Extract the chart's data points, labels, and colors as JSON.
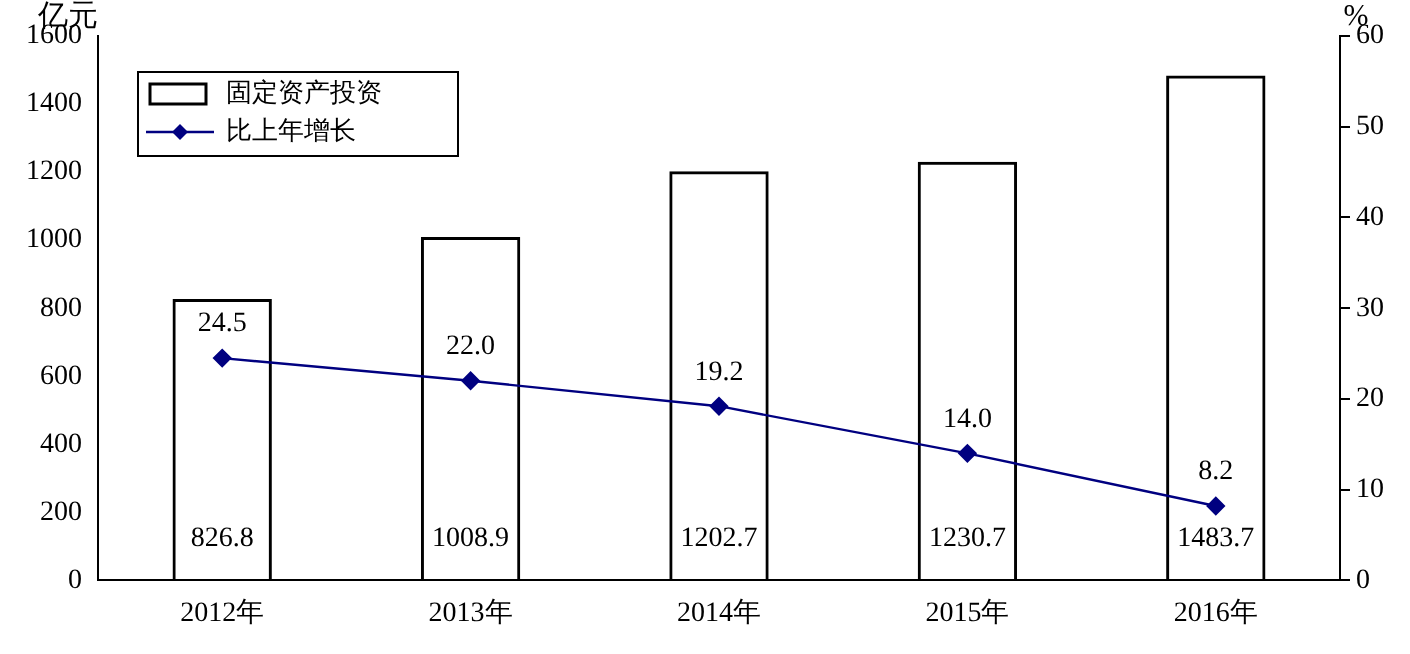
{
  "chart_data": {
    "type": "bar",
    "ylabel": "亿元",
    "y2label": "%",
    "categories": [
      "2012年",
      "2013年",
      "2014年",
      "2015年",
      "2016年"
    ],
    "series": [
      {
        "name": "固定资产投资",
        "color": "#000000",
        "values": [
          826.8,
          1008.9,
          1202.7,
          1230.7,
          1483.7
        ],
        "value_labels": [
          "826.8",
          "1008.9",
          "1202.7",
          "1230.7",
          "1483.7"
        ]
      },
      {
        "name": "比上年增长",
        "type": "line",
        "axis": "y2",
        "color": "#000080",
        "values": [
          24.5,
          22.0,
          19.2,
          14.0,
          8.2
        ],
        "value_labels": [
          "24.5",
          "22.0",
          "19.2",
          "14.0",
          "8.2"
        ]
      }
    ],
    "ylim": [
      0,
      1600
    ],
    "yticks": [
      0,
      200,
      400,
      600,
      800,
      1000,
      1200,
      1400,
      1600
    ],
    "y2lim": [
      0,
      60
    ],
    "y2ticks": [
      0,
      10,
      20,
      30,
      40,
      50,
      60
    ],
    "grid": false,
    "legend": "top left",
    "marker": "diamond",
    "line_style": "solid"
  }
}
